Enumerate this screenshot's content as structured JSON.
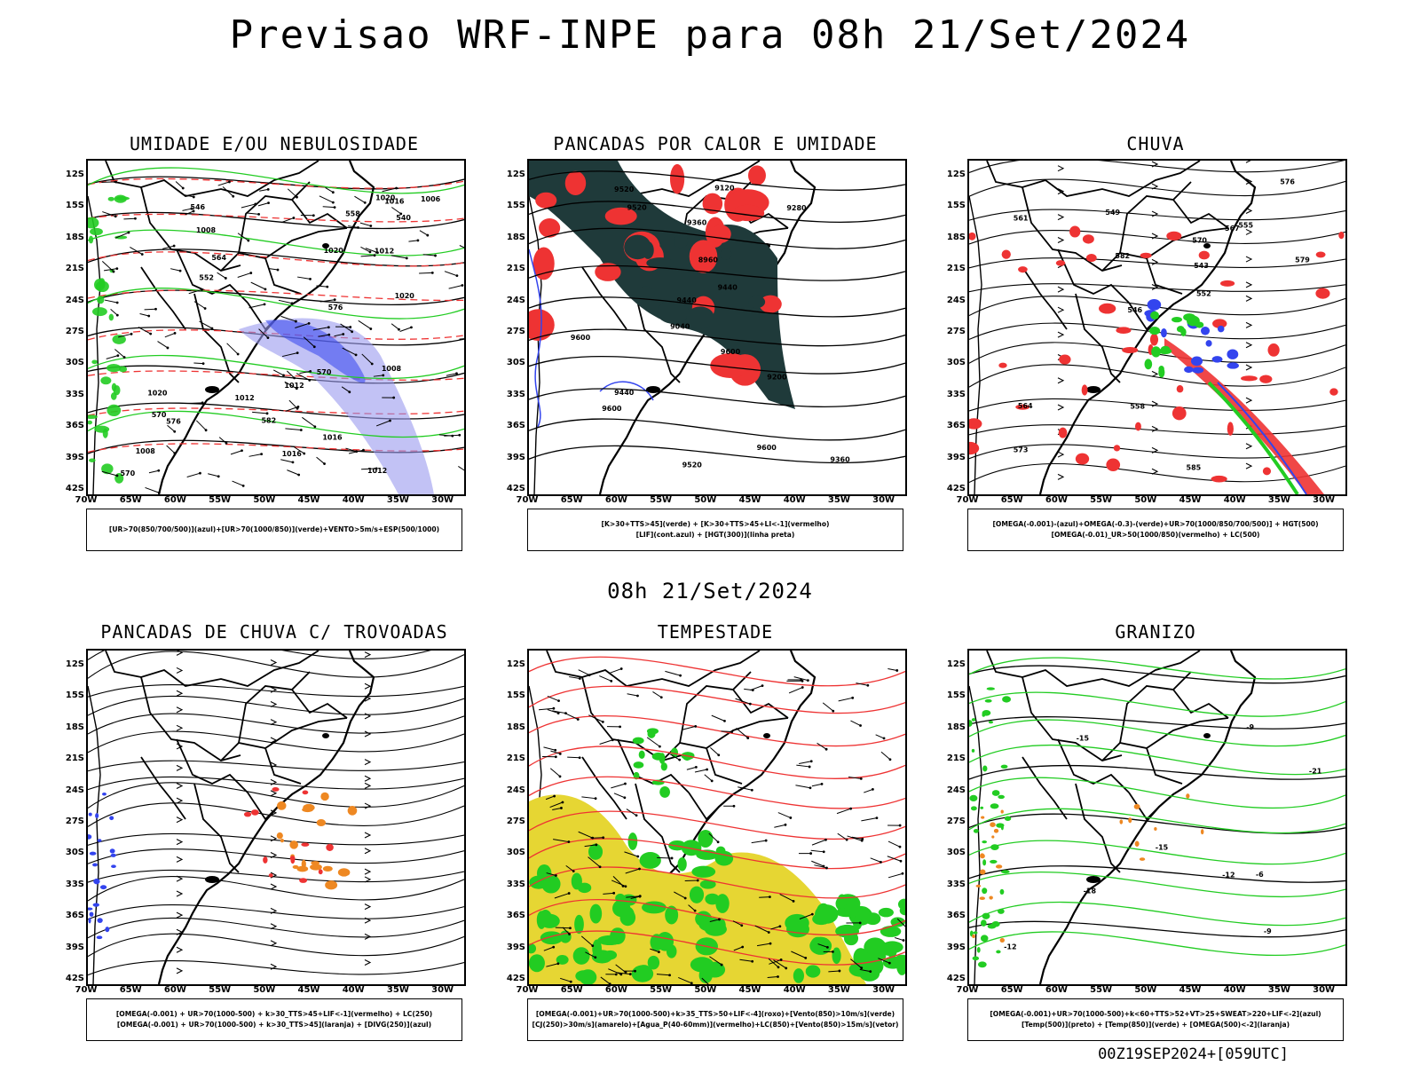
{
  "header": {
    "title": "Previsao WRF-INPE  para 08h 21/Set/2024",
    "subtitle": "08h 21/Set/2024",
    "footer": "00Z19SEP2024+[059UTC]"
  },
  "axes": {
    "lat_labels": [
      "12S",
      "15S",
      "18S",
      "21S",
      "24S",
      "27S",
      "30S",
      "33S",
      "36S",
      "39S",
      "42S"
    ],
    "lon_labels": [
      "70W",
      "65W",
      "60W",
      "55W",
      "50W",
      "45W",
      "40W",
      "35W",
      "30W"
    ]
  },
  "colors": {
    "green": "#22cc22",
    "blue": "#3344ee",
    "lavender": "#9999ee",
    "red": "#ee3333",
    "dark_teal": "#1f3a3a",
    "yellow": "#e6d633",
    "orange": "#ee8822",
    "black": "#000000"
  },
  "panels": [
    {
      "title": "UMIDADE E/OU NEBULOSIDADE",
      "legend": [
        "[UR>70(850/700/500)](azul)+[UR>70(1000/850)](verde)+VENTO>5m/s+ESP(500/1000)"
      ],
      "contour_labels": [
        "1016",
        "1008",
        "1006",
        "1008",
        "1012",
        "1016",
        "1020",
        "1012",
        "1016",
        "1020",
        "1012",
        "1020",
        "1008",
        "1012",
        "1020",
        "570",
        "576",
        "570",
        "564",
        "558",
        "552",
        "546",
        "540",
        "570",
        "576",
        "582"
      ]
    },
    {
      "title": "PANCADAS POR CALOR E UMIDADE",
      "legend": [
        "[K>30+TTS>45](verde) + [K>30+TTS>45+LI<-1](vermelho)",
        "[LIF](cont.azul) + [HGT(300)](linha preta)"
      ],
      "contour_labels": [
        "9600",
        "9600",
        "9600",
        "9600",
        "9520",
        "9520",
        "9520",
        "9440",
        "9440",
        "9440",
        "9360",
        "9360",
        "9280",
        "9200",
        "9120",
        "9040",
        "8960"
      ]
    },
    {
      "title": "CHUVA",
      "legend": [
        "[OMEGA(-0.001)-(azul)+OMEGA(-0.3)-(verde)+UR>70(1000/850/700/500)] + HGT(500)",
        "[OMEGA(-0.01)_UR>50(1000/850)(vermelho) + LC(500)"
      ],
      "contour_labels": [
        "585",
        "582",
        "579",
        "576",
        "573",
        "570",
        "567",
        "564",
        "561",
        "558",
        "555",
        "552",
        "549",
        "546",
        "543"
      ]
    },
    {
      "title": "PANCADAS DE CHUVA C/ TROVOADAS",
      "legend": [
        "[OMEGA(-0.001) + UR>70(1000-500) + k>30_TTS>45+LIF<-1](vermelho) + LC(250)",
        "[OMEGA(-0.001) + UR>70(1000-500) + k>30_TTS>45](laranja) + [DIVG(250)](azul)"
      ],
      "contour_labels": []
    },
    {
      "title": "TEMPESTADE",
      "legend": [
        "[OMEGA(-0.001)+UR>70(1000-500)+k>35_TTS>50+LIF<-4](roxo)+[Vento(850)>10m/s](verde)",
        "[CJ(250)>30m/s](amarelo)+[Agua_P(40-60mm)](vermelho)+LC(850)+[Vento(850)>15m/s](vetor)"
      ],
      "contour_labels": []
    },
    {
      "title": "GRANIZO",
      "legend": [
        "[OMEGA(-0.001)+UR>70(1000-500)+k<60+TTS>52+VT>25+SWEAT>220+LIF<-2](azul)",
        "[Temp(500)](preto) + [Temp(850)](verde) + [OMEGA(500)<-2](laranja)"
      ],
      "contour_labels": [
        "-9",
        "-12",
        "-15",
        "-18",
        "-21",
        "-12",
        "-15",
        "-9",
        "-6"
      ]
    }
  ]
}
